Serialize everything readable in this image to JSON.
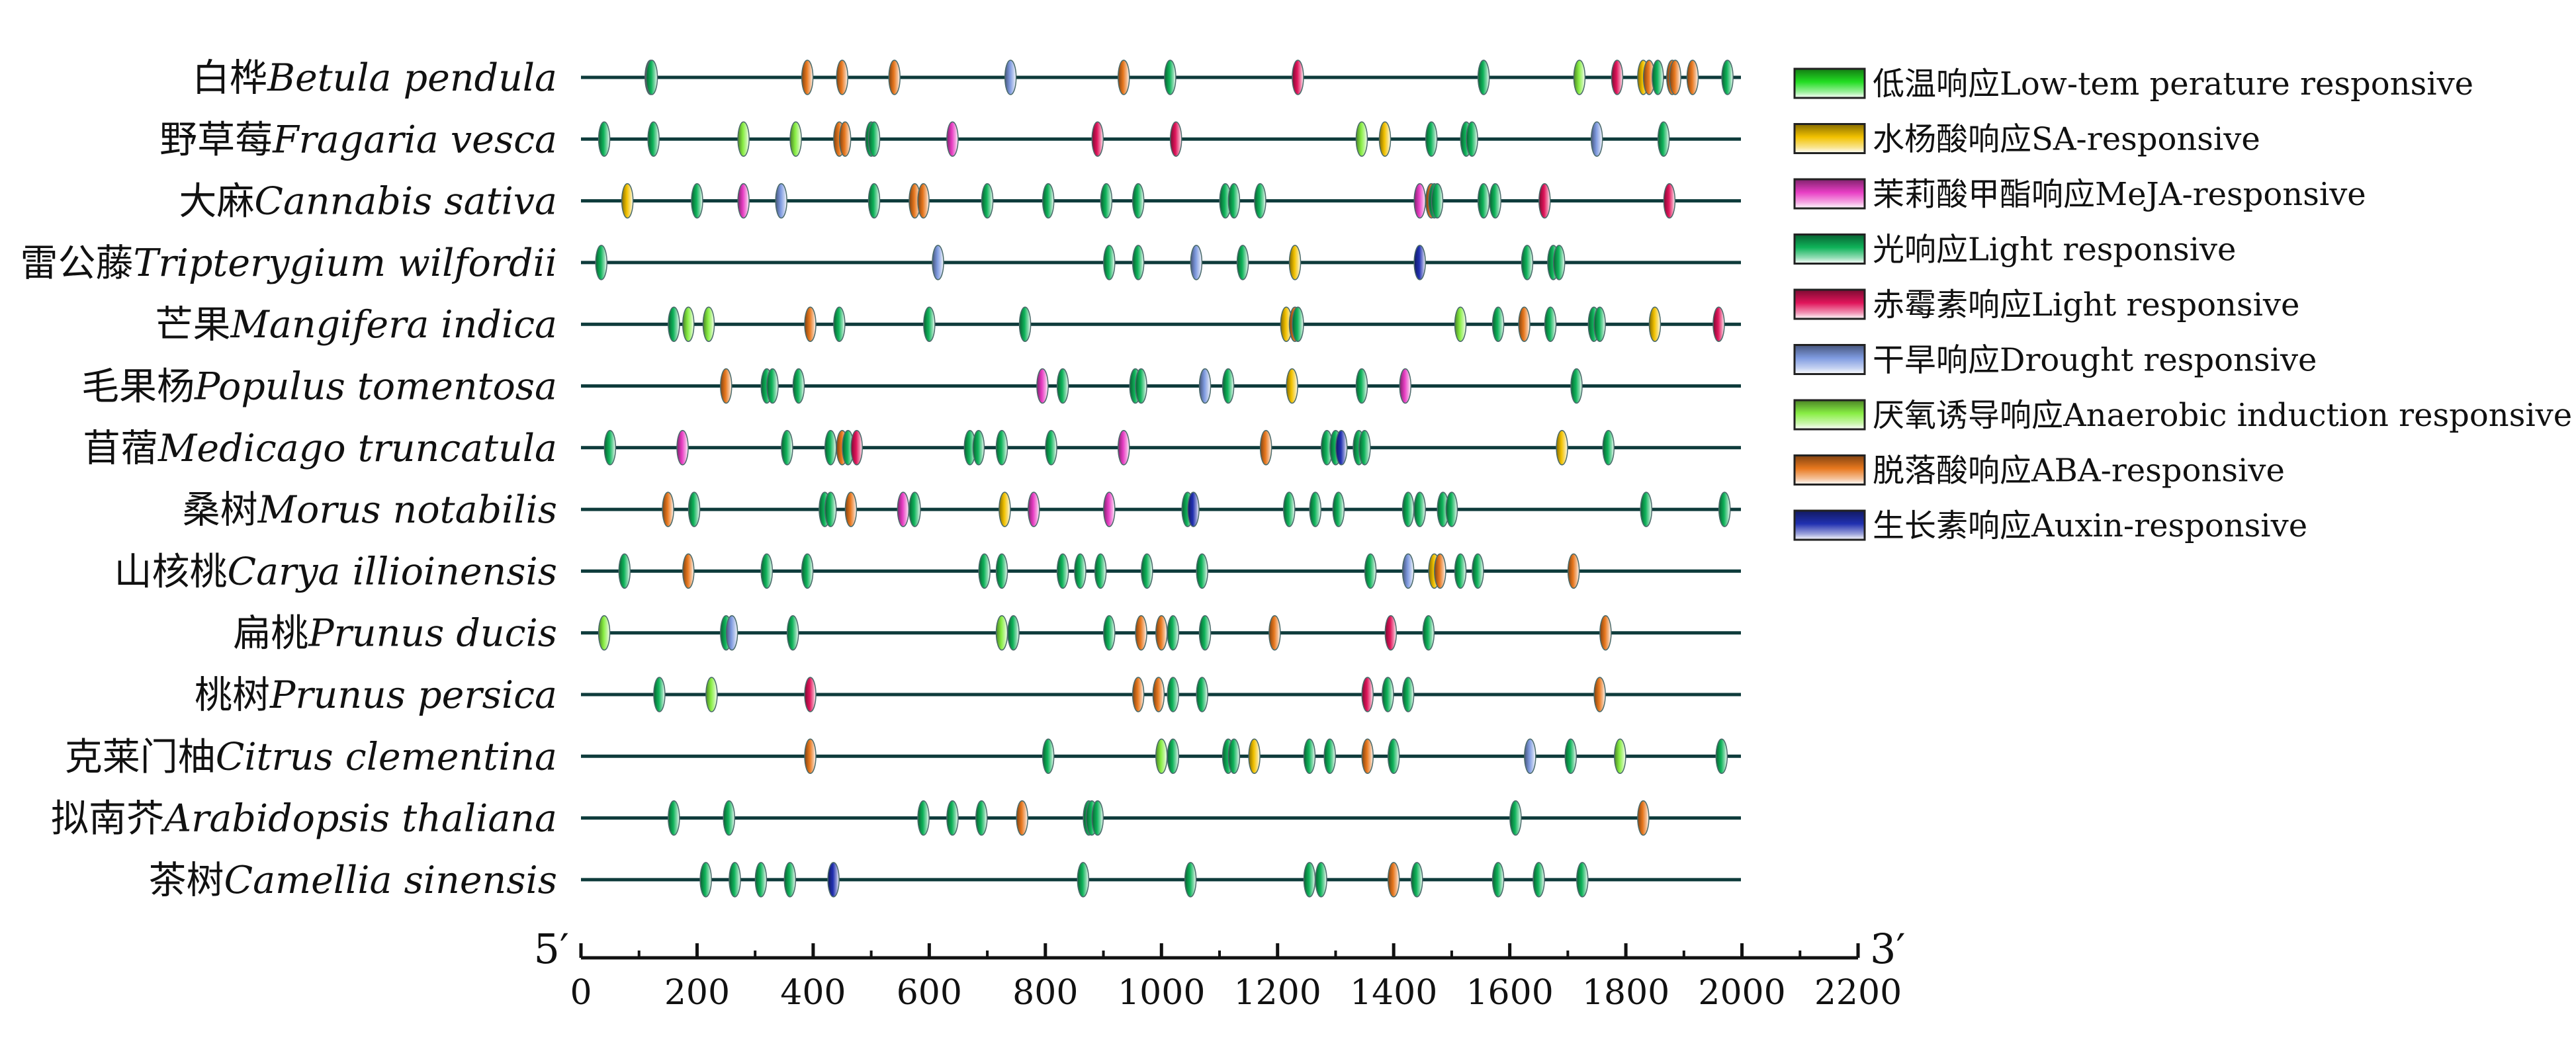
{
  "chart_data": {
    "type": "promoter-element-map",
    "x_range": [
      0,
      2200
    ],
    "ticks": [
      0,
      200,
      400,
      600,
      800,
      1000,
      1200,
      1400,
      1600,
      1800,
      2000,
      2200
    ],
    "end_labels": {
      "left": "5′",
      "right": "3′"
    },
    "element_types": {
      "low_temp": {
        "label": "低温响应Low-tem perature responsive",
        "color": "#22dd22"
      },
      "sa": {
        "label": "水杨酸响应SA-responsive",
        "color": "#f2c200"
      },
      "meja": {
        "label": "茉莉酸甲酯响应MeJA-responsive",
        "color": "#e83ec4"
      },
      "light": {
        "label": "光响应Light responsive",
        "color": "#0fb35a"
      },
      "ga": {
        "label": "赤霉素响应Light responsive",
        "color": "#e0145a"
      },
      "drought": {
        "label": "干旱响应Drought responsive",
        "color": "#7f9be0"
      },
      "anaerobic": {
        "label": "厌氧诱导响应Anaerobic induction responsive",
        "color": "#88ee44"
      },
      "aba": {
        "label": "脱落酸响应ABA-responsive",
        "color": "#e8781e"
      },
      "auxin": {
        "label": "生长素响应Auxin-responsive",
        "color": "#2030b0"
      }
    },
    "legend_order": [
      "low_temp",
      "sa",
      "meja",
      "light",
      "ga",
      "drought",
      "anaerobic",
      "aba",
      "auxin"
    ],
    "species": [
      {
        "cn": "白桦",
        "latin": "Betula pendula",
        "elements": [
          [
            120,
            "ga"
          ],
          [
            122,
            "light"
          ],
          [
            390,
            "aba"
          ],
          [
            450,
            "aba"
          ],
          [
            540,
            "aba"
          ],
          [
            740,
            "drought"
          ],
          [
            935,
            "aba"
          ],
          [
            1015,
            "light"
          ],
          [
            1235,
            "ga"
          ],
          [
            1555,
            "light"
          ],
          [
            1720,
            "anaerobic"
          ],
          [
            1785,
            "ga"
          ],
          [
            1830,
            "sa"
          ],
          [
            1840,
            "aba"
          ],
          [
            1855,
            "light"
          ],
          [
            1880,
            "aba"
          ],
          [
            1885,
            "aba"
          ],
          [
            1915,
            "aba"
          ],
          [
            1975,
            "light"
          ]
        ]
      },
      {
        "cn": "野草莓",
        "latin": "Fragaria vesca",
        "elements": [
          [
            40,
            "light"
          ],
          [
            125,
            "light"
          ],
          [
            280,
            "anaerobic"
          ],
          [
            370,
            "anaerobic"
          ],
          [
            445,
            "aba"
          ],
          [
            455,
            "aba"
          ],
          [
            500,
            "light"
          ],
          [
            505,
            "light"
          ],
          [
            640,
            "meja"
          ],
          [
            890,
            "ga"
          ],
          [
            1025,
            "ga"
          ],
          [
            1345,
            "anaerobic"
          ],
          [
            1385,
            "sa"
          ],
          [
            1465,
            "light"
          ],
          [
            1525,
            "light"
          ],
          [
            1535,
            "light"
          ],
          [
            1750,
            "drought"
          ],
          [
            1865,
            "light"
          ]
        ]
      },
      {
        "cn": "大麻",
        "latin": "Cannabis sativa",
        "elements": [
          [
            80,
            "sa"
          ],
          [
            200,
            "light"
          ],
          [
            280,
            "meja"
          ],
          [
            345,
            "drought"
          ],
          [
            505,
            "light"
          ],
          [
            575,
            "aba"
          ],
          [
            590,
            "aba"
          ],
          [
            700,
            "light"
          ],
          [
            805,
            "light"
          ],
          [
            905,
            "light"
          ],
          [
            960,
            "light"
          ],
          [
            1110,
            "light"
          ],
          [
            1125,
            "light"
          ],
          [
            1170,
            "light"
          ],
          [
            1445,
            "meja"
          ],
          [
            1465,
            "aba"
          ],
          [
            1470,
            "light"
          ],
          [
            1475,
            "light"
          ],
          [
            1555,
            "light"
          ],
          [
            1575,
            "light"
          ],
          [
            1660,
            "ga"
          ],
          [
            1875,
            "ga"
          ]
        ]
      },
      {
        "cn": "雷公藤",
        "latin": "Tripterygium wilfordii",
        "elements": [
          [
            35,
            "light"
          ],
          [
            615,
            "drought"
          ],
          [
            910,
            "light"
          ],
          [
            960,
            "light"
          ],
          [
            1060,
            "drought"
          ],
          [
            1140,
            "light"
          ],
          [
            1230,
            "sa"
          ],
          [
            1445,
            "auxin"
          ],
          [
            1630,
            "light"
          ],
          [
            1675,
            "light"
          ],
          [
            1685,
            "light"
          ]
        ]
      },
      {
        "cn": "芒果",
        "latin": "Mangifera indica",
        "elements": [
          [
            160,
            "light"
          ],
          [
            185,
            "anaerobic"
          ],
          [
            220,
            "anaerobic"
          ],
          [
            395,
            "aba"
          ],
          [
            445,
            "light"
          ],
          [
            600,
            "light"
          ],
          [
            765,
            "light"
          ],
          [
            1215,
            "sa"
          ],
          [
            1230,
            "aba"
          ],
          [
            1235,
            "light"
          ],
          [
            1515,
            "anaerobic"
          ],
          [
            1580,
            "light"
          ],
          [
            1625,
            "aba"
          ],
          [
            1670,
            "light"
          ],
          [
            1745,
            "light"
          ],
          [
            1755,
            "light"
          ],
          [
            1850,
            "sa"
          ],
          [
            1960,
            "ga"
          ]
        ]
      },
      {
        "cn": "毛果杨",
        "latin": "Populus tomentosa",
        "elements": [
          [
            250,
            "aba"
          ],
          [
            320,
            "light"
          ],
          [
            330,
            "light"
          ],
          [
            375,
            "light"
          ],
          [
            795,
            "meja"
          ],
          [
            830,
            "light"
          ],
          [
            955,
            "light"
          ],
          [
            965,
            "light"
          ],
          [
            1075,
            "drought"
          ],
          [
            1115,
            "light"
          ],
          [
            1225,
            "sa"
          ],
          [
            1345,
            "light"
          ],
          [
            1420,
            "meja"
          ],
          [
            1715,
            "light"
          ]
        ]
      },
      {
        "cn": "苜蓿",
        "latin": "Medicago truncatula",
        "elements": [
          [
            50,
            "light"
          ],
          [
            175,
            "meja"
          ],
          [
            355,
            "light"
          ],
          [
            430,
            "light"
          ],
          [
            450,
            "aba"
          ],
          [
            460,
            "light"
          ],
          [
            475,
            "ga"
          ],
          [
            670,
            "light"
          ],
          [
            685,
            "light"
          ],
          [
            725,
            "light"
          ],
          [
            810,
            "light"
          ],
          [
            935,
            "meja"
          ],
          [
            1180,
            "aba"
          ],
          [
            1285,
            "light"
          ],
          [
            1300,
            "light"
          ],
          [
            1310,
            "auxin"
          ],
          [
            1340,
            "light"
          ],
          [
            1350,
            "light"
          ],
          [
            1690,
            "sa"
          ],
          [
            1770,
            "light"
          ]
        ]
      },
      {
        "cn": "桑树",
        "latin": "Morus notabilis",
        "elements": [
          [
            150,
            "aba"
          ],
          [
            195,
            "light"
          ],
          [
            420,
            "light"
          ],
          [
            430,
            "light"
          ],
          [
            465,
            "aba"
          ],
          [
            555,
            "meja"
          ],
          [
            575,
            "light"
          ],
          [
            730,
            "sa"
          ],
          [
            780,
            "meja"
          ],
          [
            910,
            "meja"
          ],
          [
            1045,
            "light"
          ],
          [
            1055,
            "auxin"
          ],
          [
            1220,
            "light"
          ],
          [
            1265,
            "light"
          ],
          [
            1305,
            "light"
          ],
          [
            1425,
            "light"
          ],
          [
            1445,
            "light"
          ],
          [
            1485,
            "light"
          ],
          [
            1500,
            "light"
          ],
          [
            1835,
            "light"
          ],
          [
            1970,
            "light"
          ]
        ]
      },
      {
        "cn": "山核桃",
        "latin": "Carya illioinensis",
        "elements": [
          [
            75,
            "light"
          ],
          [
            185,
            "aba"
          ],
          [
            320,
            "light"
          ],
          [
            390,
            "light"
          ],
          [
            695,
            "light"
          ],
          [
            725,
            "light"
          ],
          [
            830,
            "light"
          ],
          [
            860,
            "light"
          ],
          [
            895,
            "light"
          ],
          [
            975,
            "light"
          ],
          [
            1070,
            "light"
          ],
          [
            1360,
            "light"
          ],
          [
            1425,
            "drought"
          ],
          [
            1470,
            "sa"
          ],
          [
            1480,
            "aba"
          ],
          [
            1515,
            "light"
          ],
          [
            1545,
            "light"
          ],
          [
            1710,
            "aba"
          ]
        ]
      },
      {
        "cn": "扁桃",
        "latin": "Prunus ducis",
        "elements": [
          [
            40,
            "anaerobic"
          ],
          [
            250,
            "light"
          ],
          [
            260,
            "drought"
          ],
          [
            365,
            "light"
          ],
          [
            725,
            "anaerobic"
          ],
          [
            745,
            "light"
          ],
          [
            910,
            "light"
          ],
          [
            965,
            "aba"
          ],
          [
            1000,
            "aba"
          ],
          [
            1020,
            "light"
          ],
          [
            1075,
            "light"
          ],
          [
            1195,
            "aba"
          ],
          [
            1395,
            "ga"
          ],
          [
            1460,
            "light"
          ],
          [
            1765,
            "aba"
          ]
        ]
      },
      {
        "cn": "桃树",
        "latin": "Prunus persica",
        "elements": [
          [
            135,
            "light"
          ],
          [
            225,
            "anaerobic"
          ],
          [
            395,
            "ga"
          ],
          [
            960,
            "aba"
          ],
          [
            995,
            "aba"
          ],
          [
            1020,
            "light"
          ],
          [
            1070,
            "light"
          ],
          [
            1355,
            "ga"
          ],
          [
            1390,
            "light"
          ],
          [
            1425,
            "light"
          ],
          [
            1755,
            "aba"
          ]
        ]
      },
      {
        "cn": "克莱门柚",
        "latin": "Citrus clementina",
        "elements": [
          [
            395,
            "aba"
          ],
          [
            805,
            "light"
          ],
          [
            1000,
            "anaerobic"
          ],
          [
            1020,
            "light"
          ],
          [
            1115,
            "light"
          ],
          [
            1125,
            "light"
          ],
          [
            1160,
            "sa"
          ],
          [
            1255,
            "light"
          ],
          [
            1290,
            "light"
          ],
          [
            1355,
            "aba"
          ],
          [
            1400,
            "light"
          ],
          [
            1635,
            "drought"
          ],
          [
            1705,
            "light"
          ],
          [
            1790,
            "anaerobic"
          ],
          [
            1965,
            "light"
          ]
        ]
      },
      {
        "cn": "拟南芥",
        "latin": "Arabidopsis thaliana",
        "elements": [
          [
            160,
            "light"
          ],
          [
            255,
            "light"
          ],
          [
            590,
            "light"
          ],
          [
            640,
            "light"
          ],
          [
            690,
            "light"
          ],
          [
            760,
            "aba"
          ],
          [
            875,
            "light"
          ],
          [
            880,
            "light"
          ],
          [
            890,
            "light"
          ],
          [
            1610,
            "light"
          ],
          [
            1830,
            "aba"
          ]
        ]
      },
      {
        "cn": "茶树",
        "latin": "Camellia sinensis",
        "elements": [
          [
            215,
            "light"
          ],
          [
            265,
            "light"
          ],
          [
            310,
            "light"
          ],
          [
            360,
            "light"
          ],
          [
            435,
            "auxin"
          ],
          [
            865,
            "light"
          ],
          [
            1050,
            "light"
          ],
          [
            1255,
            "light"
          ],
          [
            1275,
            "light"
          ],
          [
            1400,
            "aba"
          ],
          [
            1440,
            "light"
          ],
          [
            1580,
            "light"
          ],
          [
            1650,
            "light"
          ],
          [
            1725,
            "light"
          ]
        ]
      }
    ]
  }
}
